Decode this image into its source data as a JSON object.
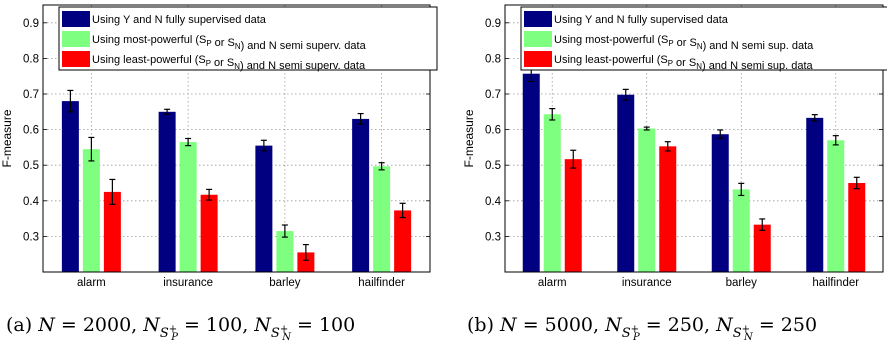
{
  "colors": {
    "series1": "#000080",
    "series2": "#7FFF7F",
    "series3": "#FF0000",
    "axis": "#000000",
    "grid": "#9a9a9a"
  },
  "chart_data": [
    {
      "type": "bar",
      "title": "",
      "ylabel": "F-measure",
      "xlabel": "",
      "ylim": [
        0.2,
        0.95
      ],
      "yticks": [
        "0.3",
        "0.4",
        "0.5",
        "0.6",
        "0.7",
        "0.8",
        "0.9"
      ],
      "grid": true,
      "legend_position": "top",
      "categories": [
        "alarm",
        "insurance",
        "barley",
        "hailfinder"
      ],
      "legend": [
        "Using Y   and N fully supervised data",
        "Using most-powerful (S_P or S_N) and N semi superv. data",
        "Using least-powerful (S_P or S_N) and N semi superv. data"
      ],
      "series": [
        {
          "values": [
            0.68,
            0.65,
            0.555,
            0.63
          ],
          "errors": [
            0.03,
            0.007,
            0.015,
            0.015
          ]
        },
        {
          "values": [
            0.545,
            0.565,
            0.315,
            0.497
          ],
          "errors": [
            0.033,
            0.01,
            0.017,
            0.01
          ]
        },
        {
          "values": [
            0.425,
            0.417,
            0.255,
            0.373
          ],
          "errors": [
            0.035,
            0.015,
            0.022,
            0.02
          ]
        }
      ],
      "caption": "(a) N = 2000,  N_{S_P+} = 100,  N_{S_N+} = 100"
    },
    {
      "type": "bar",
      "title": "",
      "ylabel": "F-measure",
      "xlabel": "",
      "ylim": [
        0.2,
        0.95
      ],
      "yticks": [
        "0.3",
        "0.4",
        "0.5",
        "0.6",
        "0.7",
        "0.8",
        "0.9"
      ],
      "grid": true,
      "legend_position": "top",
      "categories": [
        "alarm",
        "insurance",
        "barley",
        "hailfinder"
      ],
      "legend": [
        "Using Y   and N fully supervised data",
        "Using most-powerful (S_P or S_N) and N semi sup. data",
        "Using least-powerful (S_P or S_N) and N semi sup. data"
      ],
      "series": [
        {
          "values": [
            0.757,
            0.698,
            0.587,
            0.633
          ],
          "errors": [
            0.022,
            0.015,
            0.012,
            0.009
          ]
        },
        {
          "values": [
            0.643,
            0.603,
            0.432,
            0.57
          ],
          "errors": [
            0.016,
            0.004,
            0.017,
            0.013
          ]
        },
        {
          "values": [
            0.517,
            0.553,
            0.333,
            0.45
          ],
          "errors": [
            0.025,
            0.013,
            0.016,
            0.016
          ]
        }
      ],
      "caption": "(b) N = 5000,  N_{S_P+} = 250,  N_{S_N+} = 250"
    }
  ]
}
